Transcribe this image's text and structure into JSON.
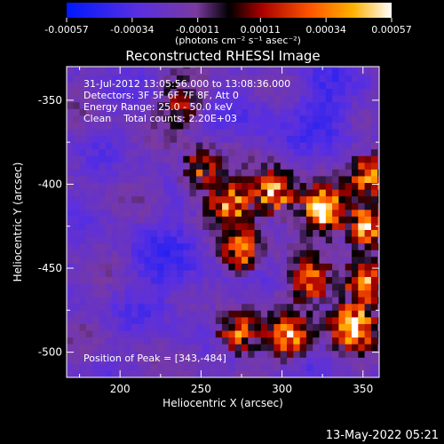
{
  "chart_data": {
    "type": "heatmap",
    "title": "Reconstructed RHESSI Image",
    "xlabel": "Heliocentric X (arcsec)",
    "ylabel": "Heliocentric Y (arcsec)",
    "xlim": [
      167,
      360
    ],
    "ylim": [
      -515,
      -330
    ],
    "x_ticks": [
      200,
      250,
      300,
      350
    ],
    "y_ticks": [
      -350,
      -400,
      -450,
      -500
    ],
    "colorbar": {
      "ticks": [
        "-0.00057",
        "-0.00034",
        "-0.00011",
        "0.00011",
        "0.00034",
        "0.00057"
      ],
      "range": [
        -0.00057,
        0.00057
      ],
      "unit_label": "(photons cm⁻² s⁻¹ asec⁻²)"
    },
    "annotations": {
      "time": "31-Jul-2012 13:05:56.000 to 13:08:36.000",
      "detectors": "Detectors: 3F 5F 6F 7F 8F, Att 0",
      "energy": "Energy Range: 25.0 - 50.0 keV",
      "clean": "Clean    Total counts: 2.20E+03",
      "peak": "Position of Peak = [343,-484]"
    },
    "peak": {
      "x": 343,
      "y": -484
    },
    "emission_regions": [
      {
        "x": 343,
        "y": -484,
        "intensity": 0.00057
      },
      {
        "x": 325,
        "y": -415,
        "intensity": 0.00048
      },
      {
        "x": 295,
        "y": -405,
        "intensity": 0.00042
      },
      {
        "x": 352,
        "y": -425,
        "intensity": 0.0004
      },
      {
        "x": 355,
        "y": -395,
        "intensity": 0.0003
      },
      {
        "x": 268,
        "y": -412,
        "intensity": 0.00032
      },
      {
        "x": 275,
        "y": -440,
        "intensity": 0.0003
      },
      {
        "x": 305,
        "y": -490,
        "intensity": 0.00032
      },
      {
        "x": 272,
        "y": -488,
        "intensity": 0.00026
      },
      {
        "x": 318,
        "y": -458,
        "intensity": 0.00024
      },
      {
        "x": 250,
        "y": -392,
        "intensity": 0.00018
      },
      {
        "x": 350,
        "y": -458,
        "intensity": 0.0003
      },
      {
        "x": 238,
        "y": -352,
        "intensity": 0.0001
      }
    ]
  },
  "timestamp": "13-May-2022 05:21"
}
